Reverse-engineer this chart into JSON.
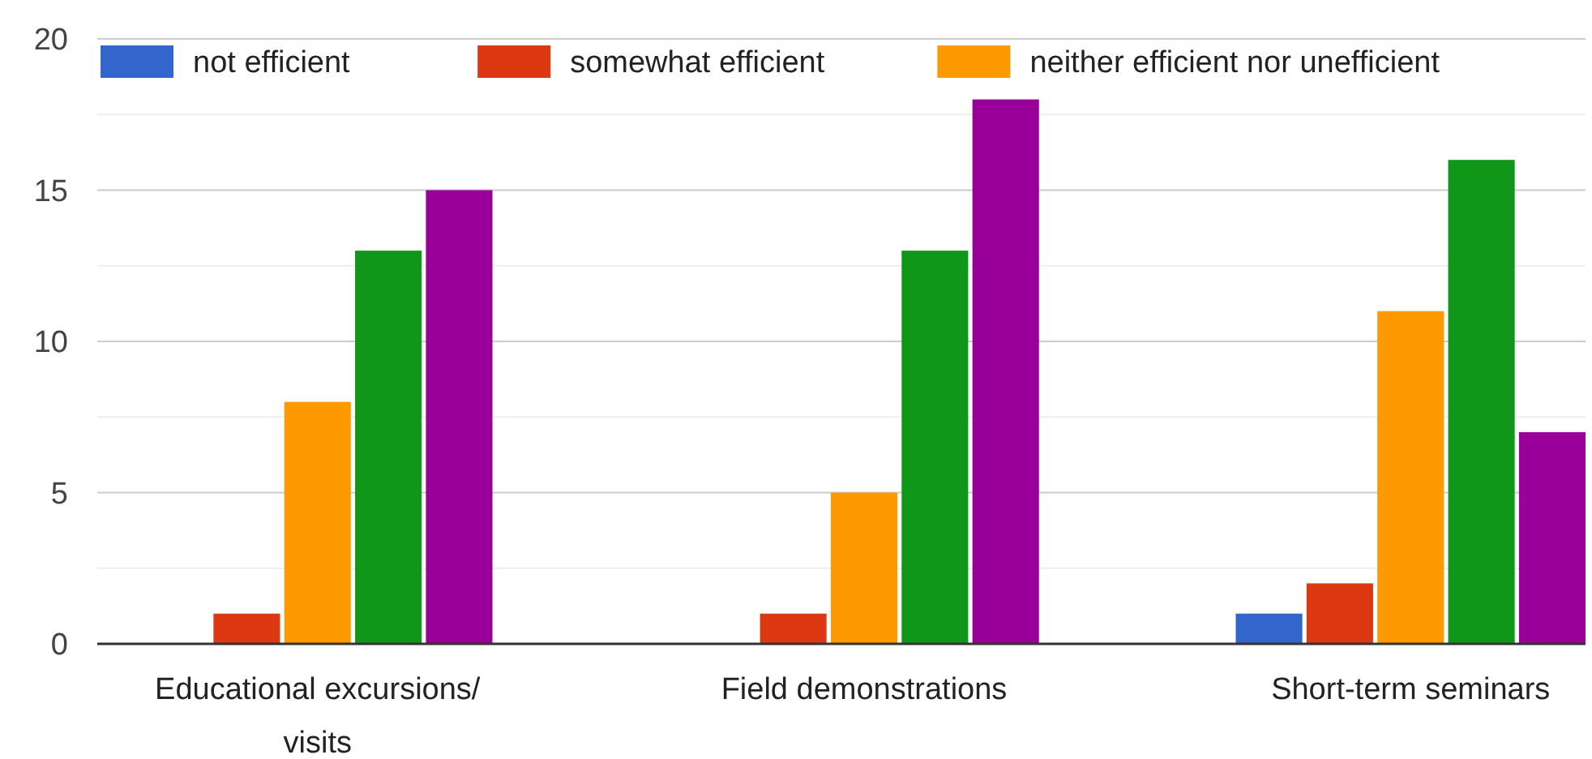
{
  "chart_data": {
    "type": "bar",
    "categories": [
      "Educational excursions/ visits",
      "Field demonstrations",
      "Short-term seminars"
    ],
    "series": [
      {
        "name": "not efficient",
        "color": "#3366cc",
        "values": [
          0,
          0,
          1
        ]
      },
      {
        "name": "somewhat efficient",
        "color": "#dc3912",
        "values": [
          1,
          1,
          2
        ]
      },
      {
        "name": "neither efficient nor unefficient",
        "color": "#ff9900",
        "values": [
          8,
          5,
          11
        ]
      },
      {
        "color": "#109618",
        "values": [
          13,
          13,
          16
        ]
      },
      {
        "color": "#990099",
        "values": [
          15,
          18,
          7
        ]
      }
    ],
    "ylim": [
      0,
      20
    ],
    "yticks": [
      0,
      {
        "value": 2.5,
        "label": null
      },
      5,
      {
        "value": 7.5,
        "label": null
      },
      10,
      {
        "value": 12.5,
        "label": null
      },
      15,
      {
        "value": 17.5,
        "label": null
      },
      20
    ],
    "grid": "y",
    "legend": "top left"
  }
}
